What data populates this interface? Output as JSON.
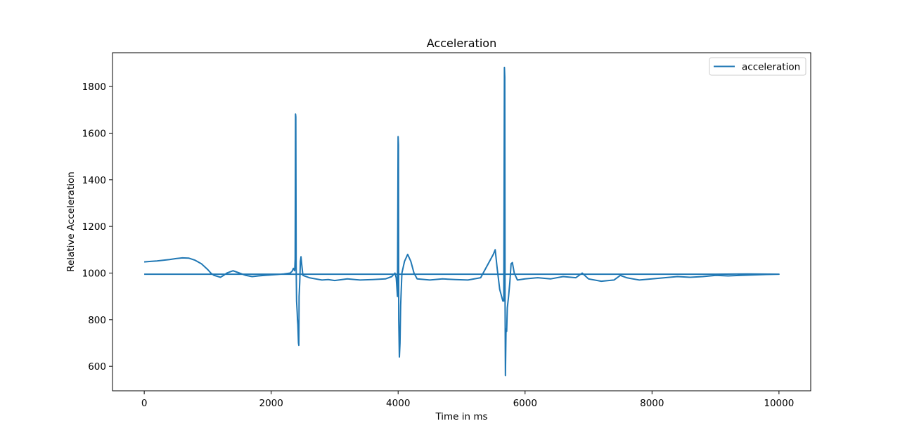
{
  "chart_data": {
    "type": "line",
    "title": "Acceleration",
    "xlabel": "Time in ms",
    "ylabel": "Relative Acceleration",
    "xlim": [
      -500,
      10500
    ],
    "ylim": [
      495,
      1945
    ],
    "xticks": [
      0,
      2000,
      4000,
      6000,
      8000,
      10000
    ],
    "yticks": [
      600,
      800,
      1000,
      1200,
      1400,
      1600,
      1800
    ],
    "grid": false,
    "legend": {
      "position": "top-right"
    },
    "color": "#1f77b4",
    "series": [
      {
        "name": "acceleration",
        "color": "#1f77b4",
        "points": [
          [
            0,
            1048
          ],
          [
            100,
            1050
          ],
          [
            200,
            1052
          ],
          [
            300,
            1055
          ],
          [
            400,
            1058
          ],
          [
            500,
            1062
          ],
          [
            600,
            1065
          ],
          [
            700,
            1064
          ],
          [
            800,
            1055
          ],
          [
            900,
            1040
          ],
          [
            1000,
            1015
          ],
          [
            1050,
            1000
          ],
          [
            1100,
            990
          ],
          [
            1150,
            986
          ],
          [
            1200,
            982
          ],
          [
            1250,
            990
          ],
          [
            1300,
            1000
          ],
          [
            1350,
            1005
          ],
          [
            1400,
            1010
          ],
          [
            1500,
            1000
          ],
          [
            1600,
            990
          ],
          [
            1700,
            985
          ],
          [
            1800,
            988
          ],
          [
            1900,
            990
          ],
          [
            2000,
            992
          ],
          [
            2100,
            994
          ],
          [
            2200,
            996
          ],
          [
            2300,
            1000
          ],
          [
            2330,
            1008
          ],
          [
            2350,
            1020
          ],
          [
            2370,
            1010
          ],
          [
            2378,
            1060
          ],
          [
            2383,
            1682
          ],
          [
            2388,
            1670
          ],
          [
            2393,
            1030
          ],
          [
            2400,
            880
          ],
          [
            2410,
            830
          ],
          [
            2415,
            800
          ],
          [
            2420,
            780
          ],
          [
            2430,
            700
          ],
          [
            2435,
            690
          ],
          [
            2440,
            900
          ],
          [
            2450,
            960
          ],
          [
            2460,
            1050
          ],
          [
            2470,
            1070
          ],
          [
            2480,
            1040
          ],
          [
            2500,
            990
          ],
          [
            2600,
            980
          ],
          [
            2700,
            975
          ],
          [
            2800,
            970
          ],
          [
            2900,
            972
          ],
          [
            3000,
            968
          ],
          [
            3200,
            975
          ],
          [
            3400,
            970
          ],
          [
            3600,
            972
          ],
          [
            3800,
            975
          ],
          [
            3900,
            985
          ],
          [
            3950,
            1000
          ],
          [
            3970,
            980
          ],
          [
            3990,
            900
          ],
          [
            4000,
            1585
          ],
          [
            4005,
            1550
          ],
          [
            4010,
            800
          ],
          [
            4020,
            640
          ],
          [
            4030,
            700
          ],
          [
            4040,
            860
          ],
          [
            4060,
            1000
          ],
          [
            4100,
            1050
          ],
          [
            4150,
            1080
          ],
          [
            4200,
            1050
          ],
          [
            4250,
            1000
          ],
          [
            4300,
            975
          ],
          [
            4500,
            970
          ],
          [
            4700,
            975
          ],
          [
            4900,
            972
          ],
          [
            5100,
            970
          ],
          [
            5300,
            980
          ],
          [
            5400,
            1030
          ],
          [
            5500,
            1080
          ],
          [
            5530,
            1100
          ],
          [
            5560,
            1020
          ],
          [
            5600,
            930
          ],
          [
            5630,
            900
          ],
          [
            5650,
            880
          ],
          [
            5665,
            880
          ],
          [
            5675,
            1882
          ],
          [
            5680,
            1840
          ],
          [
            5685,
            900
          ],
          [
            5690,
            560
          ],
          [
            5700,
            760
          ],
          [
            5710,
            750
          ],
          [
            5720,
            850
          ],
          [
            5740,
            900
          ],
          [
            5760,
            960
          ],
          [
            5780,
            1040
          ],
          [
            5800,
            1045
          ],
          [
            5830,
            1000
          ],
          [
            5880,
            970
          ],
          [
            6000,
            975
          ],
          [
            6200,
            980
          ],
          [
            6400,
            975
          ],
          [
            6600,
            985
          ],
          [
            6800,
            980
          ],
          [
            6900,
            1000
          ],
          [
            7000,
            975
          ],
          [
            7200,
            965
          ],
          [
            7400,
            970
          ],
          [
            7500,
            990
          ],
          [
            7600,
            980
          ],
          [
            7700,
            975
          ],
          [
            7800,
            970
          ],
          [
            8000,
            975
          ],
          [
            8200,
            980
          ],
          [
            8400,
            985
          ],
          [
            8600,
            982
          ],
          [
            8800,
            985
          ],
          [
            9000,
            990
          ],
          [
            9200,
            988
          ],
          [
            9400,
            990
          ],
          [
            9600,
            992
          ],
          [
            9800,
            994
          ],
          [
            10000,
            995
          ],
          [
            9500,
            996
          ],
          [
            9000,
            995
          ],
          [
            8500,
            995
          ],
          [
            8000,
            995
          ],
          [
            7000,
            995
          ],
          [
            6000,
            995
          ],
          [
            5000,
            995
          ],
          [
            4000,
            995
          ],
          [
            3000,
            995
          ],
          [
            2000,
            995
          ],
          [
            1000,
            995
          ],
          [
            0,
            995
          ]
        ]
      }
    ]
  }
}
